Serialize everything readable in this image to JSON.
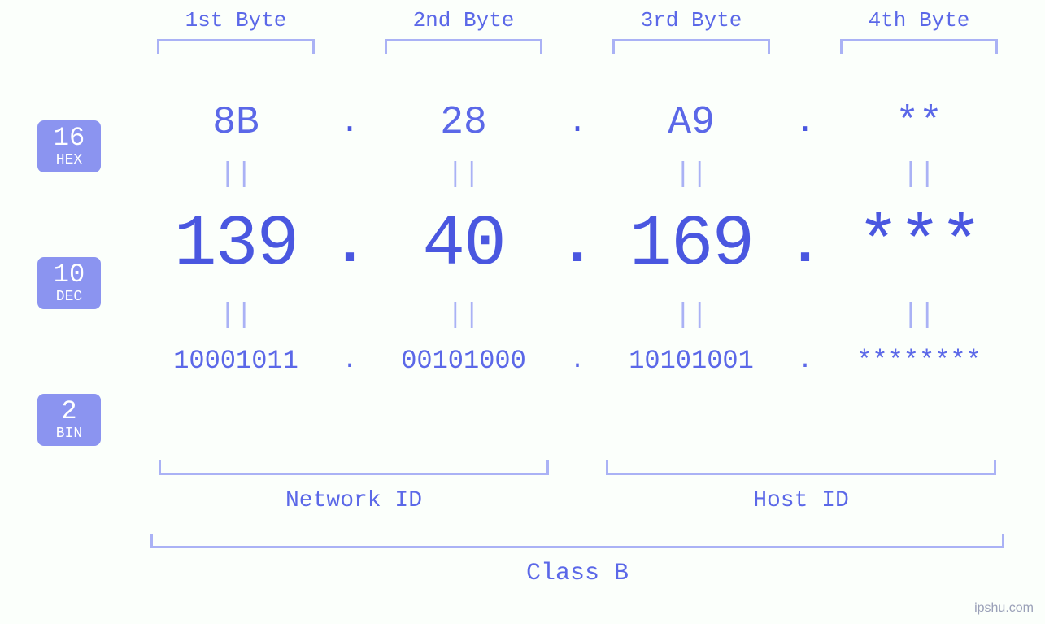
{
  "type": "infographic",
  "background_color": "#fbfffb",
  "accent_color": "#5b68e8",
  "strong_color": "#4a57e0",
  "bracket_color": "#aab2f5",
  "badge_bg": "#8b94f0",
  "badge_fg": "#ffffff",
  "font_family": "Courier New",
  "bytes": {
    "labels": [
      "1st Byte",
      "2nd Byte",
      "3rd Byte",
      "4th Byte"
    ],
    "label_fontsize": 26
  },
  "rows": {
    "hex": {
      "base_num": "16",
      "base_name": "HEX",
      "values": [
        "8B",
        "28",
        "A9",
        "**"
      ],
      "fontsize": 48
    },
    "dec": {
      "base_num": "10",
      "base_name": "DEC",
      "values": [
        "139",
        "40",
        "169",
        "***"
      ],
      "fontsize": 88
    },
    "bin": {
      "base_num": "2",
      "base_name": "BIN",
      "values": [
        "10001011",
        "00101000",
        "10101001",
        "********"
      ],
      "fontsize": 32
    }
  },
  "separators": {
    "dot": ".",
    "equals": "||"
  },
  "groups": {
    "network": "Network ID",
    "host": "Host ID",
    "class": "Class B",
    "label_fontsize": 28
  },
  "watermark": "ipshu.com"
}
